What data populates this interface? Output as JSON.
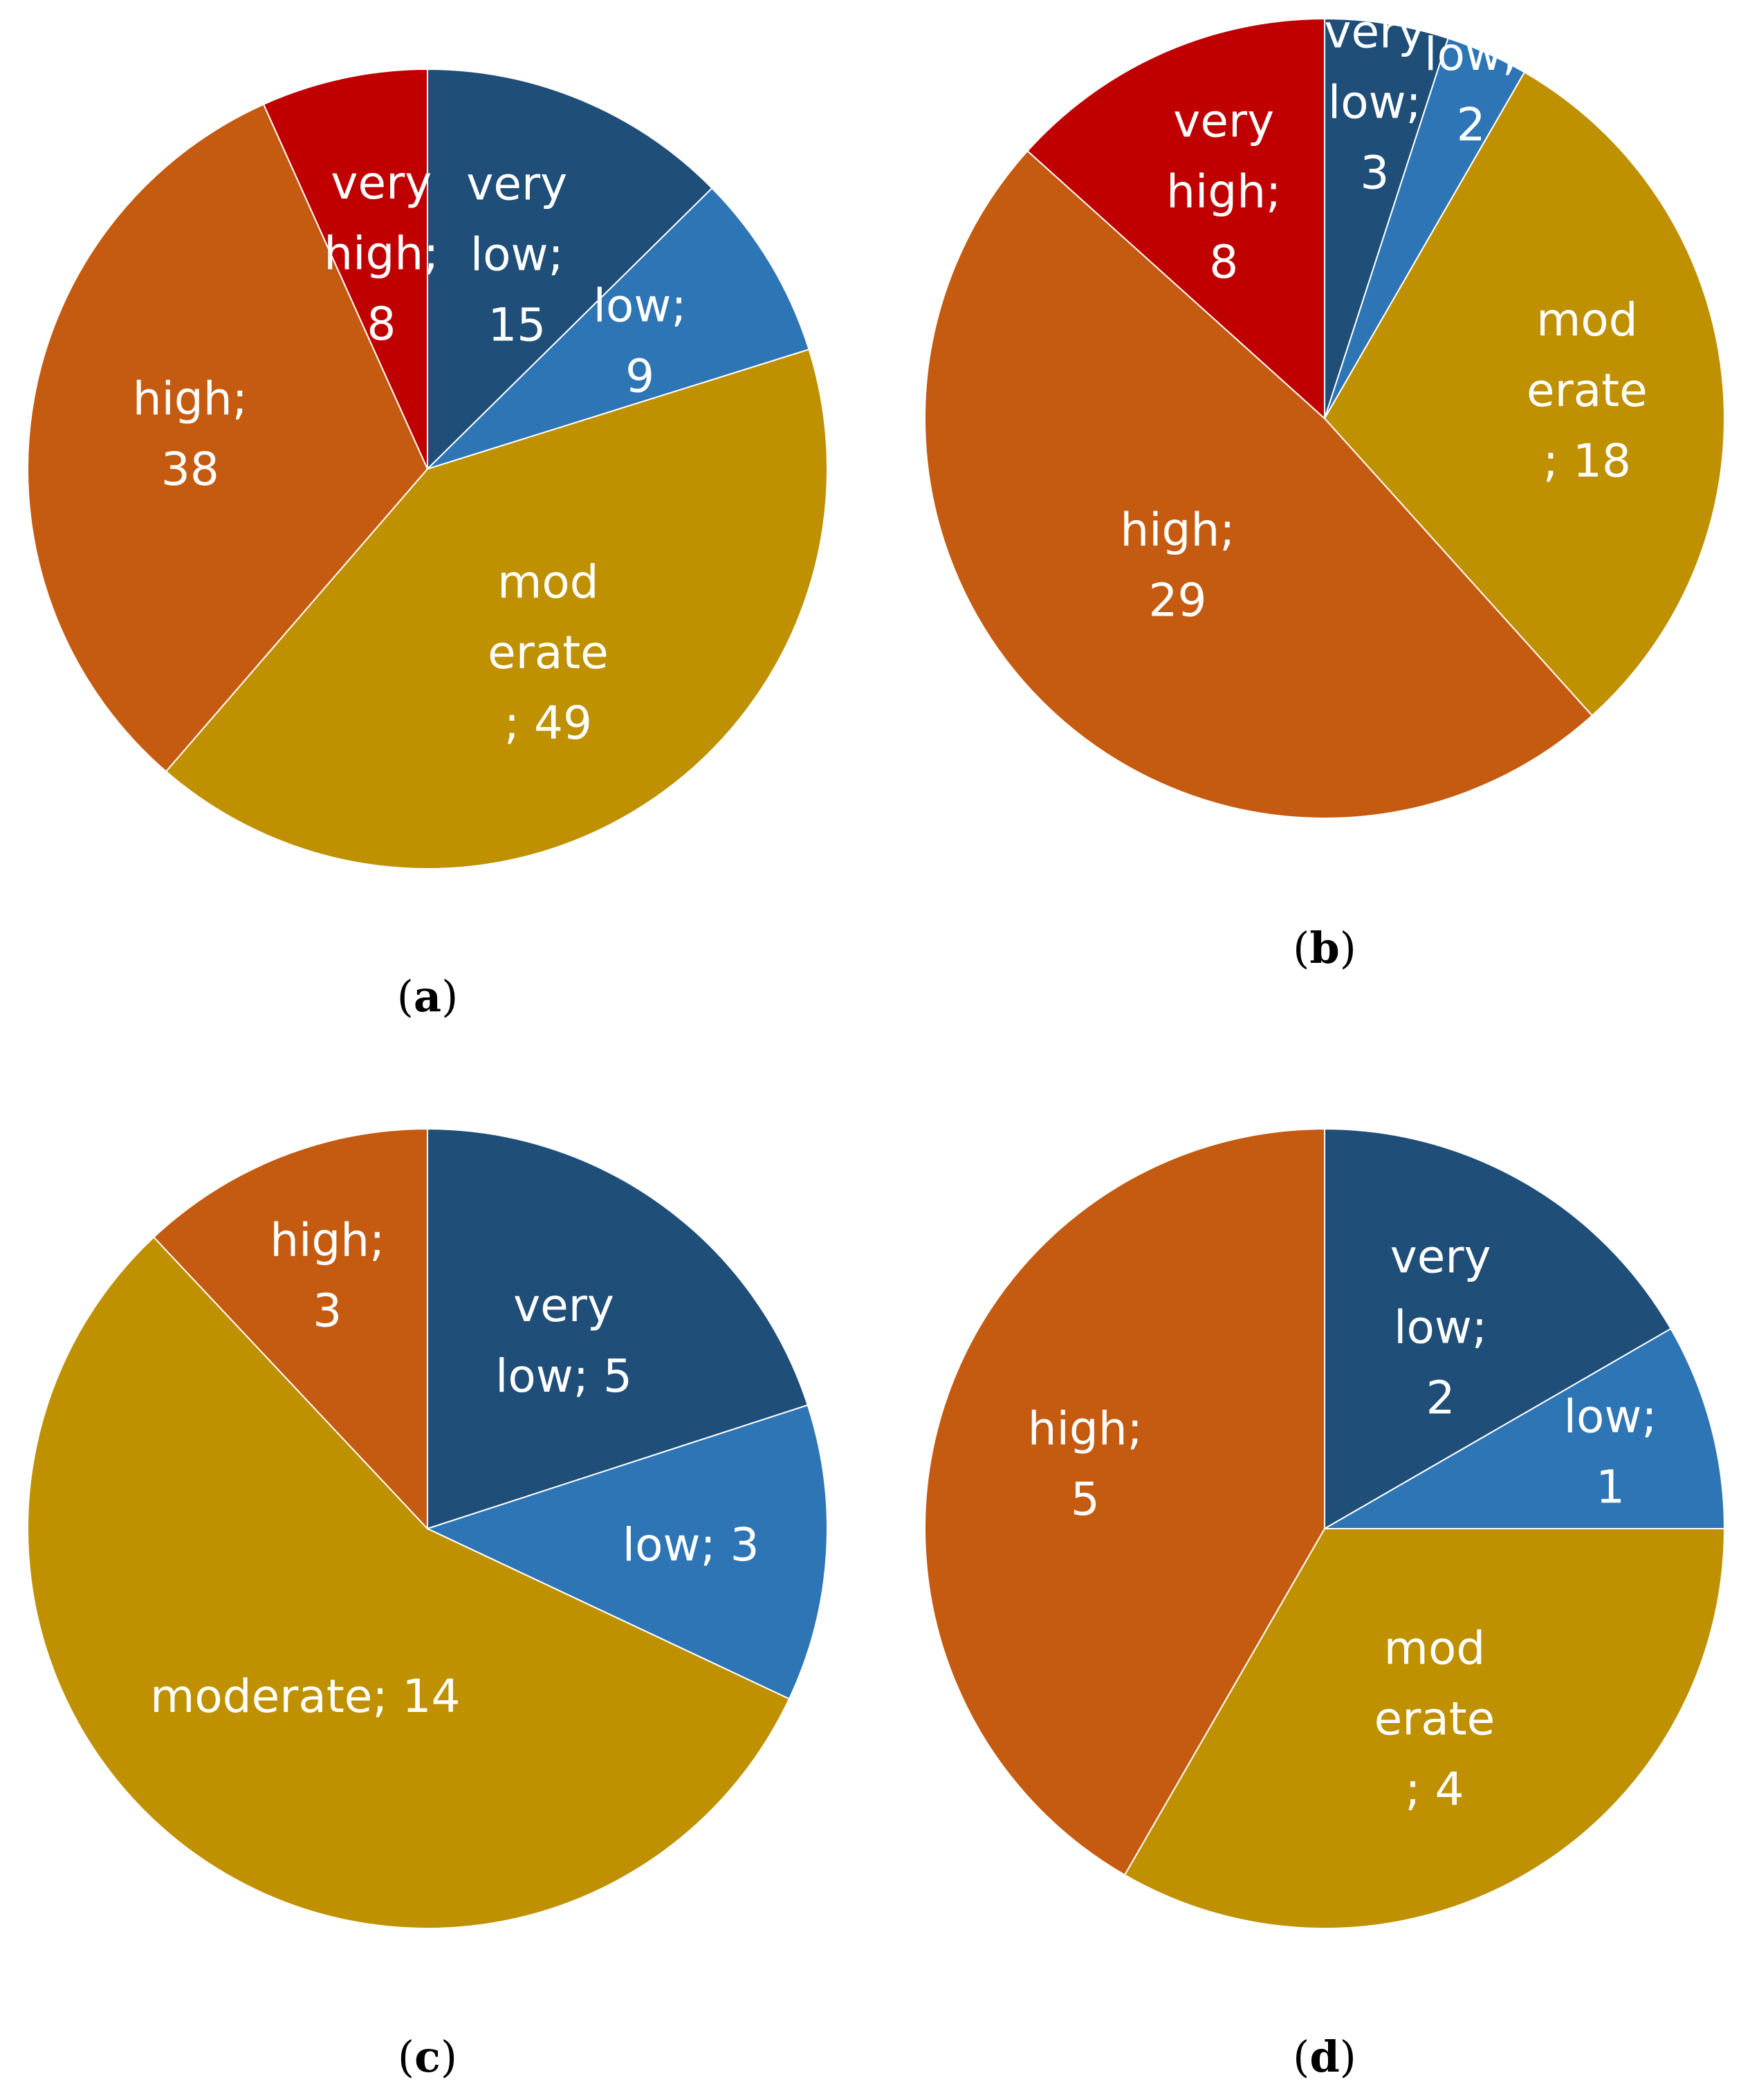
{
  "colors": {
    "very low": "#1f4e79",
    "low": "#2e75b6",
    "moderate": "#bf9000",
    "high": "#c55a11",
    "very high": "#c00000",
    "slice_border": "#ffffff",
    "label_text": "#ffffff"
  },
  "chart_data": [
    {
      "type": "pie",
      "panel": "a",
      "panel_label": "a",
      "categories": [
        "very low",
        "low",
        "moderate",
        "high",
        "very high"
      ],
      "values": [
        15,
        9,
        49,
        38,
        8
      ],
      "labels": [
        [
          "very",
          "low;",
          "15"
        ],
        [
          "low;",
          "9"
        ],
        [
          "mod",
          "erate",
          "; 49"
        ],
        [
          "high;",
          "38"
        ],
        [
          "very",
          "high;",
          "8"
        ]
      ],
      "start_angle_deg": 0,
      "direction": "clockwise"
    },
    {
      "type": "pie",
      "panel": "b",
      "panel_label": "b",
      "categories": [
        "very low",
        "low",
        "moderate",
        "high",
        "very high"
      ],
      "values": [
        3,
        2,
        18,
        29,
        8
      ],
      "labels": [
        [
          "very",
          "low;",
          "3"
        ],
        [
          "low;",
          "2"
        ],
        [
          "mod",
          "erate",
          "; 18"
        ],
        [
          "high;",
          "29"
        ],
        [
          "very",
          "high;",
          "8"
        ]
      ],
      "start_angle_deg": 0,
      "direction": "clockwise"
    },
    {
      "type": "pie",
      "panel": "c",
      "panel_label": "c",
      "categories": [
        "very low",
        "low",
        "moderate",
        "high"
      ],
      "values": [
        5,
        3,
        14,
        3
      ],
      "labels": [
        [
          "very",
          "low; 5"
        ],
        [
          "low; 3"
        ],
        [
          "moderate; 14"
        ],
        [
          "high;",
          "3"
        ]
      ],
      "start_angle_deg": 0,
      "direction": "clockwise"
    },
    {
      "type": "pie",
      "panel": "d",
      "panel_label": "d",
      "categories": [
        "very low",
        "low",
        "moderate",
        "high"
      ],
      "values": [
        2,
        1,
        4,
        5
      ],
      "labels": [
        [
          "very",
          "low;",
          "2"
        ],
        [
          "low;",
          "1"
        ],
        [
          "mod",
          "erate",
          "; 4"
        ],
        [
          "high;",
          "5"
        ]
      ],
      "start_angle_deg": 0,
      "direction": "clockwise"
    }
  ]
}
